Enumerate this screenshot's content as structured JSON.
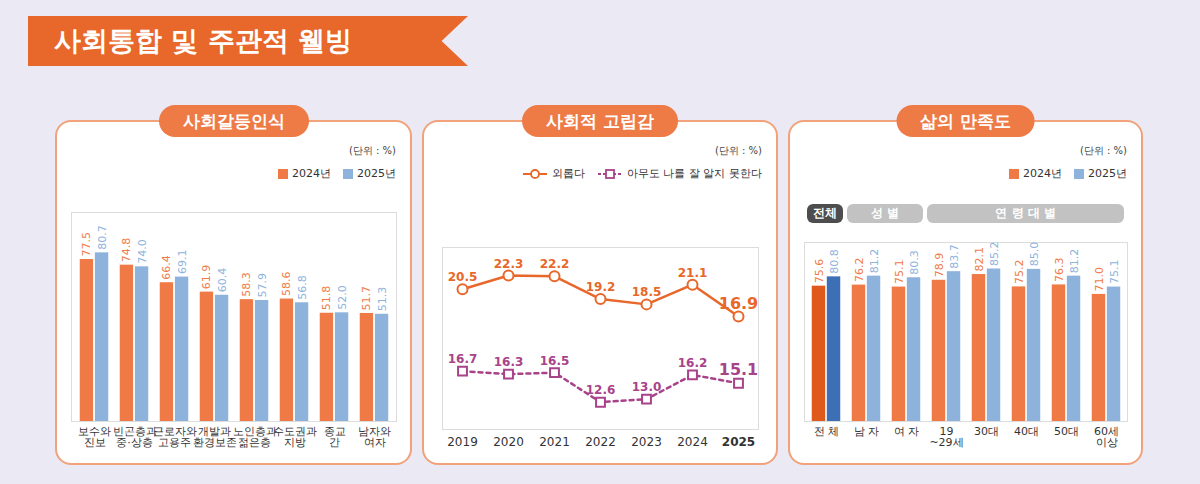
{
  "title": "사회통합 및 주관적 웰빙",
  "chart_data": [
    {
      "type": "bar",
      "title": "사회갈등인식",
      "subtitle": "(단위 : %)",
      "categories": [
        "보수와 진보",
        "빈곤층과 중·상층",
        "근로자와 고용주",
        "개발과 환경보존",
        "노인층과 젊은층",
        "수도권과 지방",
        "종교 간",
        "남자와 여자"
      ],
      "series": [
        {
          "name": "2024년",
          "color": "#f07a45",
          "values": [
            77.5,
            74.8,
            66.4,
            61.9,
            58.3,
            58.6,
            51.8,
            51.7
          ]
        },
        {
          "name": "2025년",
          "color": "#8db3dc",
          "values": [
            80.7,
            74.0,
            69.1,
            60.4,
            57.9,
            56.8,
            52.0,
            51.3
          ],
          "value_labels": [
            "80.7",
            "74.0",
            "69.1",
            "60.4",
            "57.9",
            "56.8",
            "52.0",
            "51.3"
          ]
        }
      ],
      "ylim": [
        0,
        100
      ],
      "yticks": [],
      "tick_labels": "x",
      "legend": "top-right",
      "data_labels": true
    },
    {
      "type": "line",
      "title": "사회적 고립감",
      "subtitle": "(단위 : %)",
      "categories": [
        "2019",
        "2020",
        "2021",
        "2022",
        "2023",
        "2024",
        "2025"
      ],
      "series": [
        {
          "name": "외롭다",
          "color": "#e8672a",
          "marker": "circle",
          "line_style": "solid",
          "values": [
            20.5,
            22.3,
            22.2,
            19.2,
            18.5,
            21.1,
            16.9
          ]
        },
        {
          "name": "아무도 나를 잘 알지 못한다",
          "color": "#a8438a",
          "marker": "square",
          "line_style": "dashed",
          "axis": "y2",
          "values": [
            16.7,
            16.3,
            16.5,
            12.6,
            13.0,
            16.2,
            15.1
          ],
          "value_labels": [
            "16.7",
            "16.3",
            "16.5",
            "12.6",
            "13.0",
            "16.2",
            "15.1"
          ]
        }
      ],
      "ylim": [
        2,
        26
      ],
      "yticks": [],
      "y2lim": [
        9,
        33
      ],
      "y2ticks": [],
      "tick_labels": "x",
      "legend": "top-right",
      "data_labels": true
    },
    {
      "type": "bar",
      "title": "삶의 만족도",
      "subtitle": "(단위 : %)",
      "categories": [
        "전 체",
        "남 자",
        "여 자",
        "19~29세",
        "30대",
        "40대",
        "50대",
        "60세 이상"
      ],
      "groups": [
        {
          "label": "전체",
          "members": [
            "전 체"
          ]
        },
        {
          "label": "성 별",
          "members": [
            "남 자",
            "여 자"
          ]
        },
        {
          "label": "연 령 대 별",
          "members": [
            "19~29세",
            "30대",
            "40대",
            "50대",
            "60세 이상"
          ]
        }
      ],
      "series": [
        {
          "name": "2024년",
          "color": "#f07a45",
          "colors": [
            "#e0591c",
            "#f07a45",
            "#f07a45",
            "#f07a45",
            "#f07a45",
            "#f07a45",
            "#f07a45",
            "#f07a45"
          ],
          "values": [
            75.6,
            76.2,
            75.1,
            78.9,
            82.1,
            75.2,
            76.3,
            71.0
          ],
          "value_labels": [
            "75.6",
            "76.2",
            "75.1",
            "78.9",
            "82.1",
            "75.2",
            "76.3",
            "71.0"
          ]
        },
        {
          "name": "2025년",
          "color": "#8db3dc",
          "colors": [
            "#3d6fb6",
            "#8db3dc",
            "#8db3dc",
            "#8db3dc",
            "#8db3dc",
            "#8db3dc",
            "#8db3dc",
            "#8db3dc"
          ],
          "values": [
            80.8,
            81.2,
            80.3,
            83.7,
            85.2,
            85.0,
            81.2,
            75.1
          ],
          "value_labels": [
            "80.8",
            "81.2",
            "80.3",
            "83.7",
            "85.2",
            "85.0",
            "81.2",
            "75.1"
          ]
        }
      ],
      "ylim": [
        0,
        100
      ],
      "yticks": [],
      "tick_labels": "x",
      "legend": "top-right",
      "data_labels": true
    }
  ]
}
